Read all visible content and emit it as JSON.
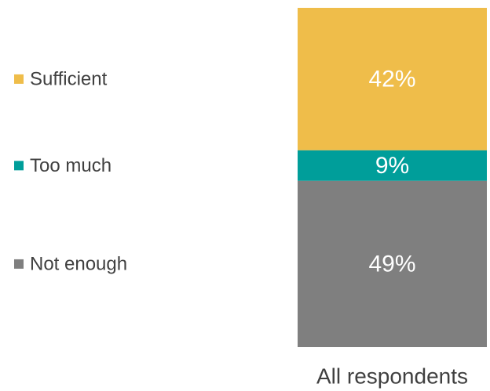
{
  "chart_data": {
    "type": "bar",
    "stacked": true,
    "categories": [
      "All respondents"
    ],
    "series": [
      {
        "name": "Sufficient",
        "values": [
          42
        ],
        "label": "42%",
        "color": "#EFBD4A"
      },
      {
        "name": "Too much",
        "values": [
          9
        ],
        "label": "9%",
        "color": "#009E9A"
      },
      {
        "name": "Not enough",
        "values": [
          49
        ],
        "label": "49%",
        "color": "#7F7F7F"
      }
    ],
    "unit": "%",
    "ylim": [
      0,
      100
    ],
    "legend_position": "left",
    "grid": false
  }
}
